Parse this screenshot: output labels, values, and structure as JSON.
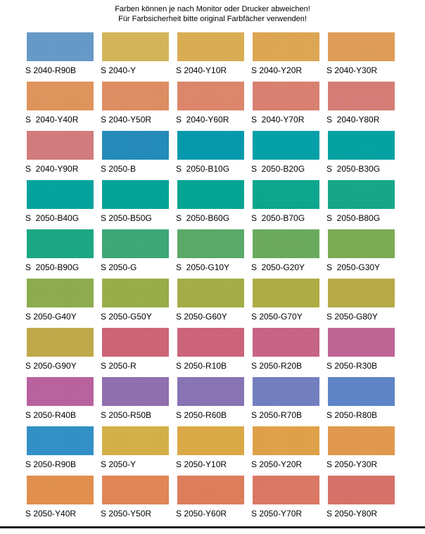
{
  "header": {
    "line1": "Farben können je nach Monitor oder Drucker abweichen!",
    "line2": "Für Farbsicherheit bitte original Farbfächer verwenden!"
  },
  "palette": {
    "columns": 5,
    "swatches": [
      {
        "label": "S 2040-R90B",
        "color": "#6397c5"
      },
      {
        "label": "S 2040-Y",
        "color": "#d2b356"
      },
      {
        "label": "S 2040-Y10R",
        "color": "#d8ab50"
      },
      {
        "label": "S 2040-Y20R",
        "color": "#dca450"
      },
      {
        "label": "S 2040-Y30R",
        "color": "#de9b55"
      },
      {
        "label": "S  2040-Y40R",
        "color": "#de9259"
      },
      {
        "label": "S 2040-Y50R",
        "color": "#dd8b60"
      },
      {
        "label": "S  2040-Y60R",
        "color": "#db8468"
      },
      {
        "label": "S  2040-Y70R",
        "color": "#d87e6e"
      },
      {
        "label": "S  2040-Y80R",
        "color": "#d47a74"
      },
      {
        "label": "S  2040-Y90R",
        "color": "#d0797b"
      },
      {
        "label": "S 2050-B",
        "color": "#2089b9"
      },
      {
        "label": "S  2050-B10G",
        "color": "#0097ab"
      },
      {
        "label": "S  2050-B20G",
        "color": "#009ea6"
      },
      {
        "label": "S  2050-B30G",
        "color": "#00a0a0"
      },
      {
        "label": "S  2050-B40G",
        "color": "#00a19b"
      },
      {
        "label": "S 2050-B50G",
        "color": "#00a196"
      },
      {
        "label": "S  2050-B60G",
        "color": "#00a291"
      },
      {
        "label": "S  2050-B70G",
        "color": "#08a48b"
      },
      {
        "label": "S  2050-B80G",
        "color": "#12a586"
      },
      {
        "label": "S  2050-B90G",
        "color": "#18a582"
      },
      {
        "label": "S 2050-G",
        "color": "#3aa674"
      },
      {
        "label": "S  2050-G10Y",
        "color": "#57a765"
      },
      {
        "label": "S  2050-G20Y",
        "color": "#68a85b"
      },
      {
        "label": "S  2050-G30Y",
        "color": "#79a951"
      },
      {
        "label": "S 2050-G40Y",
        "color": "#8aaa4b"
      },
      {
        "label": "S 2050-G50Y",
        "color": "#96ab45"
      },
      {
        "label": "S 2050-G60Y",
        "color": "#a2ab43"
      },
      {
        "label": "S 2050-G70Y",
        "color": "#adaa41"
      },
      {
        "label": "S 2050-G80Y",
        "color": "#b6a843"
      },
      {
        "label": "S 2050-G90Y",
        "color": "#bfa746"
      },
      {
        "label": "S 2050-R",
        "color": "#cb6274"
      },
      {
        "label": "S 2050-R10B",
        "color": "#ca6178"
      },
      {
        "label": "S 2050-R20B",
        "color": "#c66183"
      },
      {
        "label": "S 2050-R30B",
        "color": "#bf6292"
      },
      {
        "label": "S 2050-R40B",
        "color": "#b75f9d"
      },
      {
        "label": "S 2050-R50B",
        "color": "#8e6cad"
      },
      {
        "label": "S 2050-R60B",
        "color": "#8671b3"
      },
      {
        "label": "S 2050-R70B",
        "color": "#6f7cbd"
      },
      {
        "label": "S 2050-R80B",
        "color": "#5a82c5"
      },
      {
        "label": "S 2050-R90B",
        "color": "#2e8ec5"
      },
      {
        "label": "S 2050-Y",
        "color": "#d2ae45"
      },
      {
        "label": "S 2050-Y10R",
        "color": "#d9a743"
      },
      {
        "label": "S 2050-Y20R",
        "color": "#de9f45"
      },
      {
        "label": "S 2050-Y30R",
        "color": "#e0964b"
      },
      {
        "label": "S 2050-Y40R",
        "color": "#e08d4b"
      },
      {
        "label": "S 2050-Y50R",
        "color": "#df8453"
      },
      {
        "label": "S 2050-Y60R",
        "color": "#dc7b58"
      },
      {
        "label": "S 2050-Y70R",
        "color": "#d97560"
      },
      {
        "label": "S 2050-Y80R",
        "color": "#d56f66"
      }
    ]
  }
}
